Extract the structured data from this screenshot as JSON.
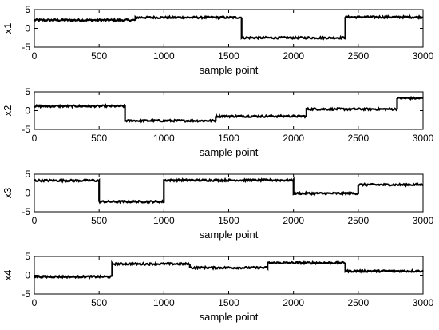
{
  "chart_data": [
    {
      "type": "line",
      "xlabel": "sample point",
      "ylabel": "x1",
      "xlim": [
        0,
        3000
      ],
      "ylim": [
        -5,
        5
      ],
      "xticks": [
        0,
        500,
        1000,
        1500,
        2000,
        2500,
        3000
      ],
      "yticks": [
        -5,
        0,
        5
      ],
      "grid": false,
      "series": [
        {
          "x": [
            0,
            780,
            780,
            1600,
            1600,
            2400,
            2400,
            3000
          ],
          "y": [
            2.2,
            2.2,
            2.9,
            2.9,
            -2.5,
            -2.5,
            3.0,
            3.0
          ]
        }
      ]
    },
    {
      "type": "line",
      "xlabel": "sample point",
      "ylabel": "x2",
      "xlim": [
        0,
        3000
      ],
      "ylim": [
        -5,
        5
      ],
      "xticks": [
        0,
        500,
        1000,
        1500,
        2000,
        2500,
        3000
      ],
      "yticks": [
        -5,
        0,
        5
      ],
      "grid": false,
      "series": [
        {
          "x": [
            0,
            700,
            700,
            1400,
            1400,
            2100,
            2100,
            2800,
            2800,
            3000
          ],
          "y": [
            1.2,
            1.2,
            -2.7,
            -2.7,
            -1.5,
            -1.5,
            0.4,
            0.4,
            3.3,
            3.3
          ]
        }
      ]
    },
    {
      "type": "line",
      "xlabel": "sample point",
      "ylabel": "x3",
      "xlim": [
        0,
        3000
      ],
      "ylim": [
        -5,
        5
      ],
      "xticks": [
        0,
        500,
        1000,
        1500,
        2000,
        2500,
        3000
      ],
      "yticks": [
        -5,
        0,
        5
      ],
      "grid": false,
      "series": [
        {
          "x": [
            0,
            500,
            500,
            1000,
            1000,
            2000,
            2000,
            2500,
            2500,
            3000
          ],
          "y": [
            3.3,
            3.3,
            -2.3,
            -2.3,
            3.4,
            3.4,
            -0.1,
            -0.1,
            2.2,
            2.2
          ]
        }
      ]
    },
    {
      "type": "line",
      "xlabel": "sample point",
      "ylabel": "x4",
      "xlim": [
        0,
        3000
      ],
      "ylim": [
        -5,
        5
      ],
      "xticks": [
        0,
        500,
        1000,
        1500,
        2000,
        2500,
        3000
      ],
      "yticks": [
        -5,
        0,
        5
      ],
      "grid": false,
      "series": [
        {
          "x": [
            0,
            600,
            600,
            1200,
            1200,
            1800,
            1800,
            2400,
            2400,
            3000
          ],
          "y": [
            -0.4,
            -0.4,
            3.0,
            3.0,
            2.0,
            2.0,
            3.3,
            3.3,
            1.1,
            1.1
          ]
        }
      ]
    }
  ]
}
